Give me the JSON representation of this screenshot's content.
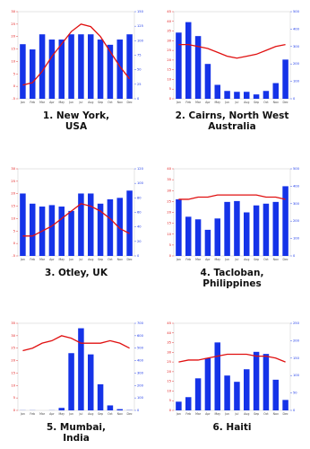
{
  "chart_data": [
    {
      "type": "bar",
      "caption": [
        "1. New York,",
        "USA"
      ],
      "categories": [
        "Jan",
        "Feb",
        "Mar",
        "Apr",
        "May",
        "Jun",
        "Jul",
        "Aug",
        "Sep",
        "Oct",
        "Nov",
        "Dec"
      ],
      "precipitation": {
        "color": "#1533e8",
        "axis": "y2",
        "values": [
          94,
          85,
          111,
          102,
          102,
          111,
          111,
          111,
          102,
          93,
          102,
          111
        ]
      },
      "temperature": {
        "color": "#e01010",
        "values": [
          0.5,
          1.5,
          6,
          12,
          17,
          22,
          25,
          24,
          20,
          14,
          8,
          3
        ]
      },
      "ylim": [
        -5,
        30
      ],
      "yticks": [
        -5,
        0,
        5,
        10,
        15,
        20,
        25,
        30
      ],
      "y2lim": [
        0,
        150
      ],
      "y2ticks": [
        0,
        25,
        50,
        75,
        100,
        125,
        150
      ]
    },
    {
      "type": "bar",
      "caption": [
        "2. Cairns, North West",
        "Australia"
      ],
      "categories": [
        "Jan",
        "Feb",
        "Mar",
        "Apr",
        "May",
        "Jun",
        "Jul",
        "Aug",
        "Sep",
        "Oct",
        "Nov",
        "Dec"
      ],
      "precipitation": {
        "color": "#1533e8",
        "axis": "y2",
        "values": [
          380,
          440,
          360,
          200,
          80,
          45,
          40,
          40,
          25,
          45,
          90,
          225
        ]
      },
      "temperature": {
        "color": "#e01010",
        "values": [
          28,
          28,
          27,
          26,
          24,
          22,
          21,
          22,
          23,
          25,
          27,
          28
        ]
      },
      "ylim": [
        0,
        45
      ],
      "yticks": [
        0,
        5,
        10,
        15,
        20,
        25,
        30,
        35,
        40,
        45
      ],
      "y2lim": [
        0,
        500
      ],
      "y2ticks": [
        0,
        100,
        200,
        300,
        400,
        500
      ]
    },
    {
      "type": "bar",
      "caption": [
        "3. Otley, UK"
      ],
      "categories": [
        "Jan",
        "Feb",
        "Mar",
        "Apr",
        "May",
        "Jun",
        "Jul",
        "Aug",
        "Sep",
        "Oct",
        "Nov",
        "Dec"
      ],
      "precipitation": {
        "color": "#1533e8",
        "axis": "y2",
        "values": [
          86,
          72,
          68,
          70,
          68,
          62,
          86,
          86,
          72,
          78,
          80,
          90
        ]
      },
      "temperature": {
        "color": "#e01010",
        "values": [
          3,
          3,
          5,
          7,
          10,
          13,
          16,
          15,
          13,
          10,
          6,
          4
        ]
      },
      "ylim": [
        -5,
        30
      ],
      "yticks": [
        -5,
        0,
        5,
        10,
        15,
        20,
        25,
        30
      ],
      "y2lim": [
        0,
        120
      ],
      "y2ticks": [
        0,
        20,
        40,
        60,
        80,
        100,
        120
      ]
    },
    {
      "type": "bar",
      "caption": [
        "4. Tacloban,",
        "Philippines"
      ],
      "categories": [
        "Jan",
        "Feb",
        "Mar",
        "Apr",
        "May",
        "Jun",
        "Jul",
        "Aug",
        "Sep",
        "Oct",
        "Nov",
        "Dec"
      ],
      "precipitation": {
        "color": "#1533e8",
        "axis": "y2",
        "values": [
          325,
          225,
          210,
          150,
          215,
          310,
          315,
          250,
          290,
          300,
          310,
          400
        ]
      },
      "temperature": {
        "color": "#e01010",
        "values": [
          26,
          26,
          27,
          27,
          28,
          28,
          28,
          28,
          28,
          27,
          27,
          26
        ]
      },
      "ylim": [
        0,
        40
      ],
      "yticks": [
        0,
        5,
        10,
        15,
        20,
        25,
        30,
        35,
        40
      ],
      "y2lim": [
        0,
        500
      ],
      "y2ticks": [
        0,
        100,
        200,
        300,
        400,
        500
      ]
    },
    {
      "type": "bar",
      "caption": [
        "5. Mumbai,",
        "India"
      ],
      "categories": [
        "Jan",
        "Feb",
        "Mar",
        "Apr",
        "May",
        "Jun",
        "Jul",
        "Aug",
        "Sep",
        "Oct",
        "Nov",
        "Dec"
      ],
      "precipitation": {
        "color": "#1533e8",
        "axis": "y2",
        "values": [
          1,
          1,
          0,
          1,
          20,
          460,
          660,
          450,
          210,
          40,
          10,
          2
        ]
      },
      "temperature": {
        "color": "#e01010",
        "values": [
          24,
          25,
          27,
          28,
          30,
          29,
          27,
          27,
          27,
          28,
          27,
          25
        ]
      },
      "ylim": [
        0,
        35
      ],
      "yticks": [
        0,
        5,
        10,
        15,
        20,
        25,
        30,
        35
      ],
      "y2lim": [
        0,
        700
      ],
      "y2ticks": [
        0,
        100,
        200,
        300,
        400,
        500,
        600,
        700
      ]
    },
    {
      "type": "bar",
      "caption": [
        "6. Haiti"
      ],
      "categories": [
        "Jan",
        "Feb",
        "Mar",
        "Apr",
        "May",
        "Jun",
        "Jul",
        "Aug",
        "Sep",
        "Oct",
        "Nov",
        "Dec"
      ],
      "precipitation": {
        "color": "#1533e8",
        "axis": "y2",
        "values": [
          25,
          38,
          92,
          150,
          195,
          100,
          82,
          118,
          168,
          162,
          88,
          30
        ]
      },
      "temperature": {
        "color": "#e01010",
        "values": [
          25,
          26,
          26,
          27,
          28,
          29,
          29,
          29,
          28,
          28,
          27,
          25
        ]
      },
      "ylim": [
        0,
        45
      ],
      "yticks": [
        0,
        5,
        10,
        15,
        20,
        25,
        30,
        35,
        40,
        45
      ],
      "y2lim": [
        0,
        250
      ],
      "y2ticks": [
        0,
        50,
        100,
        150,
        200,
        250
      ]
    }
  ]
}
